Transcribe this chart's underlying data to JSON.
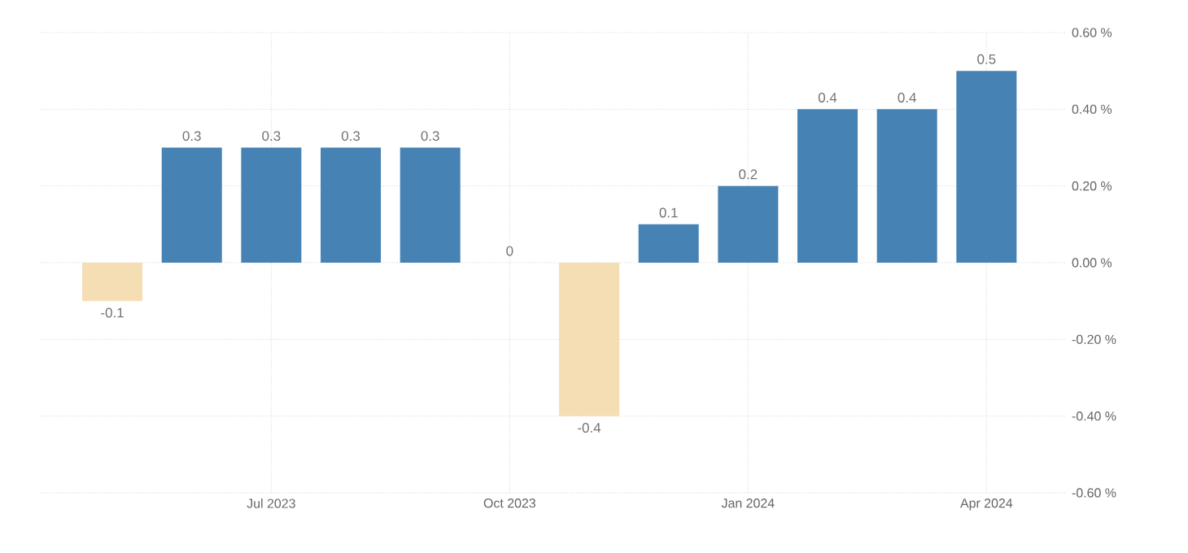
{
  "chart_data": {
    "type": "bar",
    "x": [
      "2023-05",
      "2023-06",
      "2023-07",
      "2023-08",
      "2023-09",
      "2023-10",
      "2023-11",
      "2023-12",
      "2024-01",
      "2024-02",
      "2024-03",
      "2024-04"
    ],
    "values": [
      -0.1,
      0.3,
      0.3,
      0.3,
      0.3,
      0,
      -0.4,
      0.1,
      0.2,
      0.4,
      0.4,
      0.5
    ],
    "colors": [
      "#f5deb3",
      "#4682b4",
      "#4682b4",
      "#4682b4",
      "#4682b4",
      "#4682b4",
      "#f5deb3",
      "#4682b4",
      "#4682b4",
      "#4682b4",
      "#4682b4",
      "#4682b4"
    ],
    "data_labels": true,
    "xlim": [
      "2023-04-04",
      "2024-05-01"
    ],
    "xticks": [
      {
        "value": "2023-07",
        "label": "Jul 2023"
      },
      {
        "value": "2023-10",
        "label": "Oct 2023"
      },
      {
        "value": "2024-01",
        "label": "Jan 2024"
      },
      {
        "value": "2024-04",
        "label": "Apr 2024"
      }
    ],
    "ylim": [
      -0.6,
      0.6
    ],
    "yticks": [
      {
        "value": 0.6,
        "label": "0.60 %"
      },
      {
        "value": 0.4,
        "label": "0.40 %"
      },
      {
        "value": 0.2,
        "label": "0.20 %"
      },
      {
        "value": 0,
        "label": "0.00 %"
      },
      {
        "value": -0.2,
        "label": "-0.20 %"
      },
      {
        "value": -0.4,
        "label": "-0.40 %"
      },
      {
        "value": -0.6,
        "label": "-0.60 %"
      }
    ],
    "grid": true
  }
}
